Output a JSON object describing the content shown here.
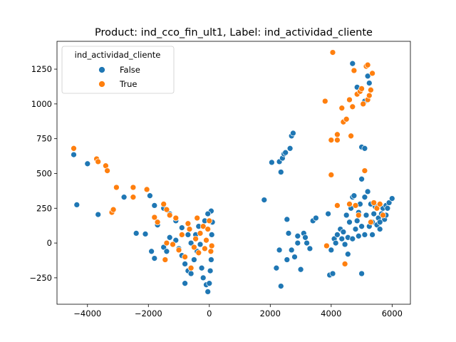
{
  "chart_data": {
    "type": "scatter",
    "title": "Product: ind_cco_fin_ult1, Label: ind_actividad_cliente",
    "xlabel": "",
    "ylabel": "",
    "xlim": [
      -5000,
      6600
    ],
    "ylim": [
      -440,
      1450
    ],
    "x_ticks": [
      -4000,
      -2000,
      0,
      2000,
      4000,
      6000
    ],
    "y_ticks": [
      -250,
      0,
      250,
      500,
      750,
      1000,
      1250
    ],
    "grid": false,
    "legend": {
      "title": "ind_actividad_cliente",
      "placement": "top-left",
      "entries": [
        "False",
        "True"
      ]
    },
    "series": [
      {
        "name": "False",
        "color": "#1f77b4",
        "points": [
          [
            -4450,
            635
          ],
          [
            -4350,
            275
          ],
          [
            -4000,
            570
          ],
          [
            -3650,
            205
          ],
          [
            -2800,
            330
          ],
          [
            -2400,
            70
          ],
          [
            -2100,
            65
          ],
          [
            -1950,
            340
          ],
          [
            -1800,
            270
          ],
          [
            -1700,
            130
          ],
          [
            -1900,
            -60
          ],
          [
            -1800,
            -110
          ],
          [
            -1500,
            -30
          ],
          [
            -1400,
            -60
          ],
          [
            -1300,
            40
          ],
          [
            -1100,
            20
          ],
          [
            -1000,
            -40
          ],
          [
            -900,
            -90
          ],
          [
            -800,
            -150
          ],
          [
            -700,
            -200
          ],
          [
            -800,
            -290
          ],
          [
            -600,
            -220
          ],
          [
            -500,
            -120
          ],
          [
            -450,
            60
          ],
          [
            -350,
            120
          ],
          [
            -300,
            -10
          ],
          [
            -250,
            -180
          ],
          [
            -200,
            -250
          ],
          [
            -100,
            -300
          ],
          [
            -50,
            -350
          ],
          [
            0,
            -290
          ],
          [
            30,
            -200
          ],
          [
            60,
            -120
          ],
          [
            80,
            60
          ],
          [
            100,
            150
          ],
          [
            60,
            230
          ],
          [
            -50,
            210
          ],
          [
            -150,
            160
          ],
          [
            -700,
            60
          ],
          [
            -900,
            110
          ],
          [
            -1100,
            160
          ],
          [
            -1300,
            210
          ],
          [
            -1500,
            250
          ],
          [
            -600,
            0
          ],
          [
            -400,
            -60
          ],
          [
            1800,
            310
          ],
          [
            2050,
            580
          ],
          [
            2200,
            -180
          ],
          [
            2300,
            -50
          ],
          [
            2350,
            -310
          ],
          [
            2350,
            510
          ],
          [
            2300,
            585
          ],
          [
            2400,
            610
          ],
          [
            2450,
            640
          ],
          [
            2500,
            650
          ],
          [
            2550,
            170
          ],
          [
            2550,
            -120
          ],
          [
            2600,
            70
          ],
          [
            2650,
            680
          ],
          [
            2700,
            770
          ],
          [
            2750,
            790
          ],
          [
            2700,
            -50
          ],
          [
            2800,
            -100
          ],
          [
            2900,
            0
          ],
          [
            2900,
            50
          ],
          [
            3000,
            -190
          ],
          [
            3100,
            70
          ],
          [
            3150,
            40
          ],
          [
            3200,
            0
          ],
          [
            3300,
            -40
          ],
          [
            3400,
            160
          ],
          [
            3500,
            180
          ],
          [
            3900,
            210
          ],
          [
            3950,
            -230
          ],
          [
            4000,
            -50
          ],
          [
            4050,
            -220
          ],
          [
            4100,
            30
          ],
          [
            4150,
            0
          ],
          [
            4200,
            60
          ],
          [
            4300,
            100
          ],
          [
            4350,
            30
          ],
          [
            4400,
            80
          ],
          [
            4500,
            200
          ],
          [
            4550,
            -80
          ],
          [
            4550,
            40
          ],
          [
            4600,
            150
          ],
          [
            4650,
            250
          ],
          [
            4700,
            330
          ],
          [
            4750,
            340
          ],
          [
            4800,
            100
          ],
          [
            4850,
            160
          ],
          [
            4900,
            220
          ],
          [
            4950,
            280
          ],
          [
            5000,
            460
          ],
          [
            5050,
            1000
          ],
          [
            5100,
            1020
          ],
          [
            5000,
            690
          ],
          [
            5100,
            680
          ],
          [
            5100,
            330
          ],
          [
            5150,
            200
          ],
          [
            5200,
            370
          ],
          [
            5250,
            120
          ],
          [
            5300,
            280
          ],
          [
            5350,
            150
          ],
          [
            5400,
            210
          ],
          [
            5450,
            260
          ],
          [
            5500,
            130
          ],
          [
            5550,
            180
          ],
          [
            5600,
            100
          ],
          [
            5650,
            210
          ],
          [
            5700,
            250
          ],
          [
            5750,
            170
          ],
          [
            5800,
            270
          ],
          [
            5850,
            250
          ],
          [
            5900,
            290
          ],
          [
            6000,
            320
          ],
          [
            5000,
            -220
          ],
          [
            4700,
            1290
          ],
          [
            4850,
            1120
          ],
          [
            5200,
            1200
          ],
          [
            5250,
            1150
          ],
          [
            4900,
            50
          ],
          [
            4700,
            30
          ],
          [
            4450,
            -10
          ],
          [
            5000,
            120
          ],
          [
            5100,
            60
          ],
          [
            5350,
            60
          ],
          [
            5600,
            150
          ],
          [
            5800,
            200
          ]
        ]
      },
      {
        "name": "True",
        "color": "#ff7f0e",
        "points": [
          [
            -4450,
            680
          ],
          [
            -3700,
            605
          ],
          [
            -3650,
            585
          ],
          [
            -3400,
            555
          ],
          [
            -3350,
            520
          ],
          [
            -3200,
            220
          ],
          [
            -3150,
            240
          ],
          [
            -3050,
            400
          ],
          [
            -2500,
            400
          ],
          [
            -2500,
            330
          ],
          [
            -2050,
            385
          ],
          [
            -1800,
            185
          ],
          [
            -1700,
            150
          ],
          [
            -1500,
            280
          ],
          [
            -1400,
            240
          ],
          [
            -1300,
            200
          ],
          [
            -1400,
            0
          ],
          [
            -1450,
            -120
          ],
          [
            -1200,
            -10
          ],
          [
            -1100,
            180
          ],
          [
            -900,
            60
          ],
          [
            -700,
            140
          ],
          [
            -650,
            100
          ],
          [
            -500,
            -30
          ],
          [
            -450,
            30
          ],
          [
            -400,
            180
          ],
          [
            -350,
            -70
          ],
          [
            -300,
            70
          ],
          [
            -200,
            120
          ],
          [
            -150,
            -40
          ],
          [
            -100,
            20
          ],
          [
            -50,
            100
          ],
          [
            0,
            160
          ],
          [
            50,
            -60
          ],
          [
            80,
            -20
          ],
          [
            -800,
            -100
          ],
          [
            -600,
            -180
          ],
          [
            -1000,
            -50
          ],
          [
            3800,
            1020
          ],
          [
            3850,
            -20
          ],
          [
            4000,
            740
          ],
          [
            4000,
            490
          ],
          [
            4050,
            1370
          ],
          [
            4200,
            780
          ],
          [
            4200,
            740
          ],
          [
            4200,
            270
          ],
          [
            4350,
            970
          ],
          [
            4400,
            870
          ],
          [
            4450,
            -150
          ],
          [
            4500,
            890
          ],
          [
            4600,
            1030
          ],
          [
            4650,
            770
          ],
          [
            4700,
            980
          ],
          [
            4750,
            1240
          ],
          [
            4800,
            270
          ],
          [
            4850,
            1070
          ],
          [
            4950,
            1090
          ],
          [
            5000,
            1110
          ],
          [
            5050,
            1000
          ],
          [
            5100,
            520
          ],
          [
            5150,
            1270
          ],
          [
            5200,
            1280
          ],
          [
            5200,
            1030
          ],
          [
            5250,
            1060
          ],
          [
            5300,
            1100
          ],
          [
            5350,
            1220
          ],
          [
            5400,
            290
          ],
          [
            5500,
            250
          ],
          [
            5600,
            280
          ],
          [
            5700,
            200
          ],
          [
            4900,
            200
          ],
          [
            4600,
            280
          ],
          [
            5300,
            150
          ]
        ]
      }
    ]
  }
}
